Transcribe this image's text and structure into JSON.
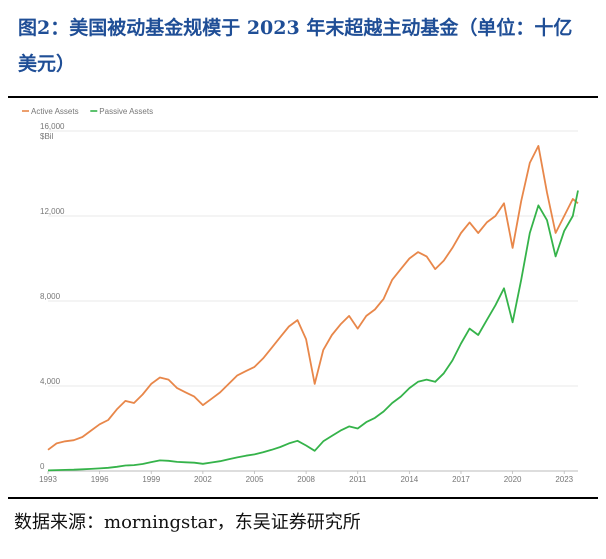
{
  "header": {
    "title": "图2：美国被动基金规模于 2023 年末超越主动基金（单位：十亿美元）"
  },
  "footer": {
    "source": "数据来源：morningstar，东吴证券研究所"
  },
  "colors": {
    "active": "#e8874a",
    "passive": "#35b34a",
    "grid": "#e3e3e3"
  },
  "chart_data": {
    "type": "line",
    "title": "",
    "ylabel": "$Bil",
    "ylim": [
      0,
      16000
    ],
    "xlim": [
      1993.0,
      2023.8
    ],
    "x_ticks": [
      "1993",
      "1996",
      "1999",
      "2002",
      "2005",
      "2008",
      "2011",
      "2014",
      "2017",
      "2020",
      "2023"
    ],
    "y_ticks": [
      "0",
      "4,000",
      "8,000",
      "12,000",
      "16,000"
    ],
    "grid": true,
    "legend_position": "top-left",
    "series": [
      {
        "name": "Active Assets",
        "x": [
          1993.0,
          1993.5,
          1994.0,
          1994.5,
          1995.0,
          1995.5,
          1996.0,
          1996.5,
          1997.0,
          1997.5,
          1998.0,
          1998.5,
          1999.0,
          1999.5,
          2000.0,
          2000.5,
          2001.0,
          2001.5,
          2002.0,
          2002.5,
          2003.0,
          2003.5,
          2004.0,
          2004.5,
          2005.0,
          2005.5,
          2006.0,
          2006.5,
          2007.0,
          2007.5,
          2008.0,
          2008.5,
          2009.0,
          2009.5,
          2010.0,
          2010.5,
          2011.0,
          2011.5,
          2012.0,
          2012.5,
          2013.0,
          2013.5,
          2014.0,
          2014.5,
          2015.0,
          2015.5,
          2016.0,
          2016.5,
          2017.0,
          2017.5,
          2018.0,
          2018.5,
          2019.0,
          2019.5,
          2020.0,
          2020.5,
          2021.0,
          2021.5,
          2022.0,
          2022.5,
          2023.0,
          2023.5,
          2023.8
        ],
        "values": [
          1000,
          1300,
          1400,
          1450,
          1600,
          1900,
          2200,
          2400,
          2900,
          3300,
          3200,
          3600,
          4100,
          4400,
          4300,
          3900,
          3700,
          3500,
          3100,
          3400,
          3700,
          4100,
          4500,
          4700,
          4900,
          5300,
          5800,
          6300,
          6800,
          7100,
          6200,
          4100,
          5700,
          6400,
          6900,
          7300,
          6700,
          7300,
          7600,
          8100,
          9000,
          9500,
          10000,
          10300,
          10100,
          9500,
          9900,
          10500,
          11200,
          11700,
          11200,
          11700,
          12000,
          12600,
          10500,
          12700,
          14500,
          15300,
          13100,
          11200,
          12000,
          12800,
          12600
        ]
      },
      {
        "name": "Passive Assets",
        "x": [
          1993.0,
          1993.5,
          1994.0,
          1994.5,
          1995.0,
          1995.5,
          1996.0,
          1996.5,
          1997.0,
          1997.5,
          1998.0,
          1998.5,
          1999.0,
          1999.5,
          2000.0,
          2000.5,
          2001.0,
          2001.5,
          2002.0,
          2002.5,
          2003.0,
          2003.5,
          2004.0,
          2004.5,
          2005.0,
          2005.5,
          2006.0,
          2006.5,
          2007.0,
          2007.5,
          2008.0,
          2008.5,
          2009.0,
          2009.5,
          2010.0,
          2010.5,
          2011.0,
          2011.5,
          2012.0,
          2012.5,
          2013.0,
          2013.5,
          2014.0,
          2014.5,
          2015.0,
          2015.5,
          2016.0,
          2016.5,
          2017.0,
          2017.5,
          2018.0,
          2018.5,
          2019.0,
          2019.5,
          2020.0,
          2020.5,
          2021.0,
          2021.5,
          2022.0,
          2022.5,
          2023.0,
          2023.5,
          2023.8
        ],
        "values": [
          30,
          40,
          50,
          60,
          80,
          100,
          120,
          150,
          200,
          260,
          280,
          330,
          420,
          500,
          480,
          430,
          410,
          390,
          340,
          400,
          460,
          550,
          640,
          720,
          780,
          880,
          1000,
          1130,
          1300,
          1420,
          1200,
          950,
          1400,
          1650,
          1900,
          2100,
          2000,
          2300,
          2500,
          2800,
          3200,
          3500,
          3900,
          4200,
          4300,
          4200,
          4600,
          5200,
          6000,
          6700,
          6400,
          7100,
          7800,
          8600,
          7000,
          9000,
          11200,
          12500,
          11800,
          10100,
          11300,
          12000,
          13200
        ]
      }
    ]
  }
}
